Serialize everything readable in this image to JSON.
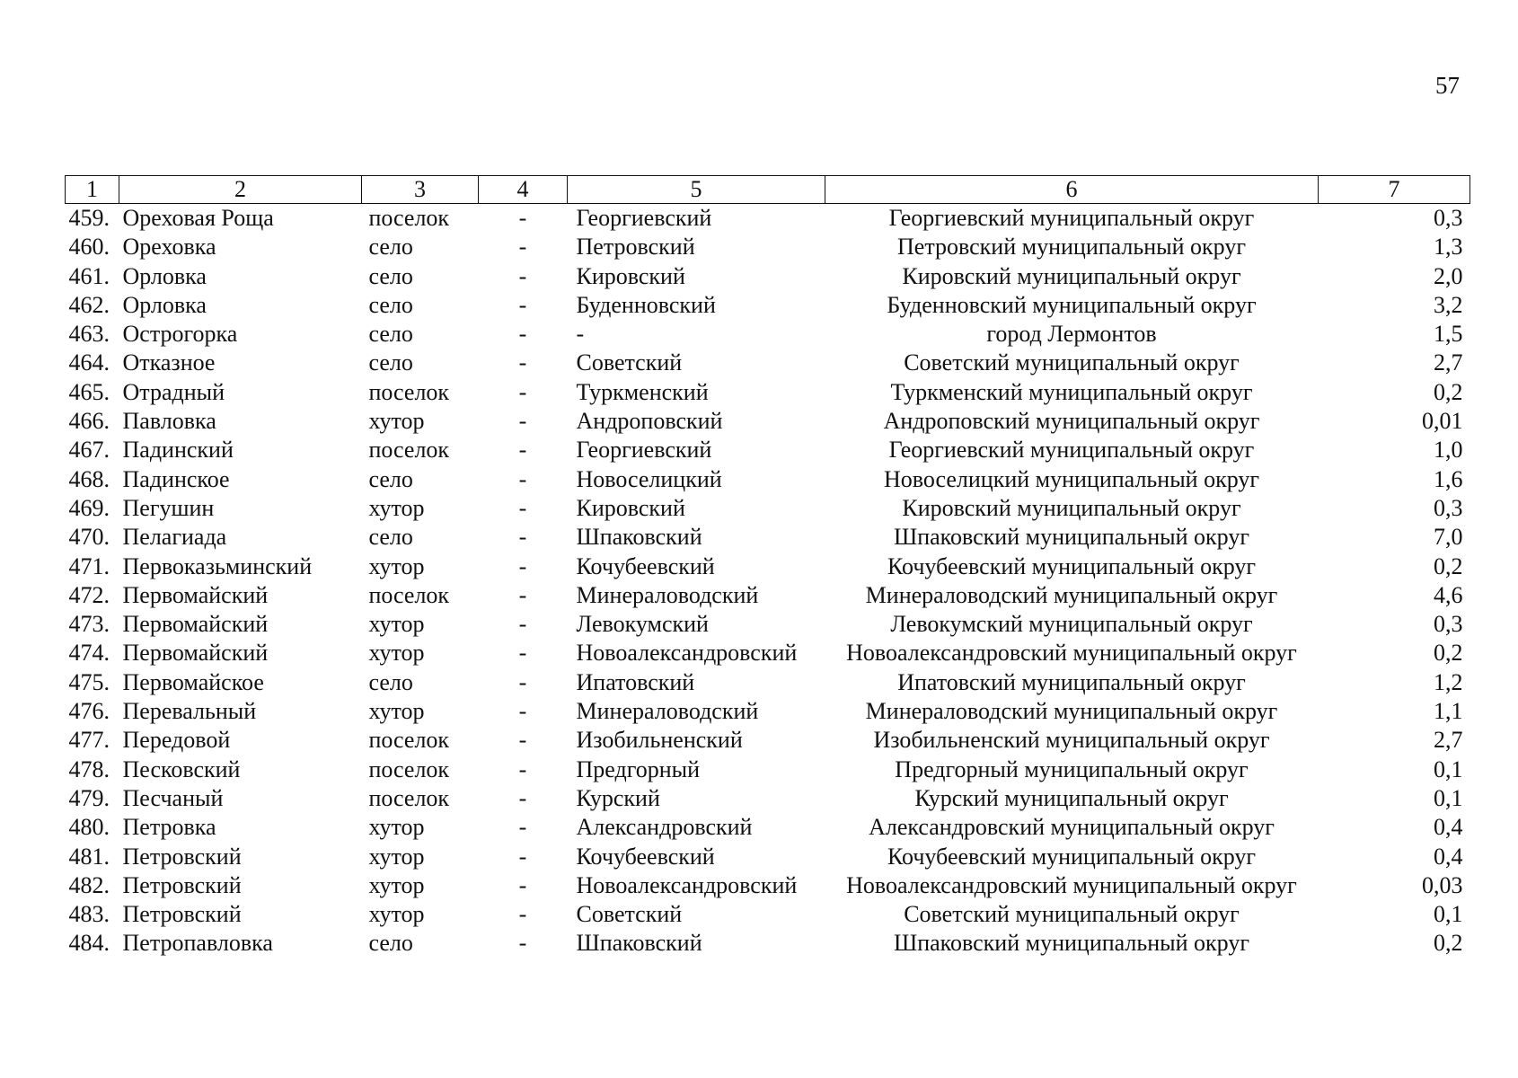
{
  "page_number": "57",
  "table": {
    "headers": [
      "1",
      "2",
      "3",
      "4",
      "5",
      "6",
      "7"
    ],
    "rows": [
      {
        "num": "459.",
        "name": "Ореховая Роща",
        "type": "поселок",
        "col4": "-",
        "district": "Георгиевский",
        "okrug": "Георгиевский муниципальный округ",
        "value": "0,3"
      },
      {
        "num": "460.",
        "name": "Ореховка",
        "type": "село",
        "col4": "-",
        "district": "Петровский",
        "okrug": "Петровский муниципальный округ",
        "value": "1,3"
      },
      {
        "num": "461.",
        "name": "Орловка",
        "type": "село",
        "col4": "-",
        "district": "Кировский",
        "okrug": "Кировский муниципальный округ",
        "value": "2,0"
      },
      {
        "num": "462.",
        "name": "Орловка",
        "type": "село",
        "col4": "-",
        "district": "Буденновский",
        "okrug": "Буденновский муниципальный округ",
        "value": "3,2"
      },
      {
        "num": "463.",
        "name": "Острогорка",
        "type": "село",
        "col4": "-",
        "district": "-",
        "okrug": "город Лермонтов",
        "value": "1,5"
      },
      {
        "num": "464.",
        "name": "Отказное",
        "type": "село",
        "col4": "-",
        "district": "Советский",
        "okrug": "Советский муниципальный округ",
        "value": "2,7"
      },
      {
        "num": "465.",
        "name": "Отрадный",
        "type": "поселок",
        "col4": "-",
        "district": "Туркменский",
        "okrug": "Туркменский муниципальный округ",
        "value": "0,2"
      },
      {
        "num": "466.",
        "name": "Павловка",
        "type": "хутор",
        "col4": "-",
        "district": "Андроповский",
        "okrug": "Андроповский муниципальный округ",
        "value": "0,01"
      },
      {
        "num": "467.",
        "name": "Падинский",
        "type": "поселок",
        "col4": "-",
        "district": "Георгиевский",
        "okrug": "Георгиевский муниципальный округ",
        "value": "1,0"
      },
      {
        "num": "468.",
        "name": "Падинское",
        "type": "село",
        "col4": "-",
        "district": "Новоселицкий",
        "okrug": "Новоселицкий муниципальный округ",
        "value": "1,6"
      },
      {
        "num": "469.",
        "name": "Пегушин",
        "type": "хутор",
        "col4": "-",
        "district": "Кировский",
        "okrug": "Кировский муниципальный округ",
        "value": "0,3"
      },
      {
        "num": "470.",
        "name": "Пелагиада",
        "type": "село",
        "col4": "-",
        "district": "Шпаковский",
        "okrug": "Шпаковский муниципальный округ",
        "value": "7,0"
      },
      {
        "num": "471.",
        "name": "Первоказьминский",
        "type": "хутор",
        "col4": "-",
        "district": "Кочубеевский",
        "okrug": "Кочубеевский муниципальный округ",
        "value": "0,2"
      },
      {
        "num": "472.",
        "name": "Первомайский",
        "type": "поселок",
        "col4": "-",
        "district": "Минераловодский",
        "okrug": "Минераловодский муниципальный округ",
        "value": "4,6"
      },
      {
        "num": "473.",
        "name": "Первомайский",
        "type": "хутор",
        "col4": "-",
        "district": "Левокумский",
        "okrug": "Левокумский муниципальный округ",
        "value": "0,3"
      },
      {
        "num": "474.",
        "name": "Первомайский",
        "type": "хутор",
        "col4": "-",
        "district": "Новоалександровский",
        "okrug": "Новоалександровский муниципальный округ",
        "value": "0,2"
      },
      {
        "num": "475.",
        "name": "Первомайское",
        "type": "село",
        "col4": "-",
        "district": "Ипатовский",
        "okrug": "Ипатовский муниципальный округ",
        "value": "1,2"
      },
      {
        "num": "476.",
        "name": "Перевальный",
        "type": "хутор",
        "col4": "-",
        "district": "Минераловодский",
        "okrug": "Минераловодский муниципальный округ",
        "value": "1,1"
      },
      {
        "num": "477.",
        "name": "Передовой",
        "type": "поселок",
        "col4": "-",
        "district": "Изобильненский",
        "okrug": "Изобильненский муниципальный округ",
        "value": "2,7"
      },
      {
        "num": "478.",
        "name": "Песковский",
        "type": "поселок",
        "col4": "-",
        "district": "Предгорный",
        "okrug": "Предгорный муниципальный округ",
        "value": "0,1"
      },
      {
        "num": "479.",
        "name": "Песчаный",
        "type": "поселок",
        "col4": "-",
        "district": "Курский",
        "okrug": "Курский муниципальный округ",
        "value": "0,1"
      },
      {
        "num": "480.",
        "name": "Петровка",
        "type": "хутор",
        "col4": "-",
        "district": "Александровский",
        "okrug": "Александровский муниципальный округ",
        "value": "0,4"
      },
      {
        "num": "481.",
        "name": "Петровский",
        "type": "хутор",
        "col4": "-",
        "district": "Кочубеевский",
        "okrug": "Кочубеевский муниципальный округ",
        "value": "0,4"
      },
      {
        "num": "482.",
        "name": "Петровский",
        "type": "хутор",
        "col4": "-",
        "district": "Новоалександровский",
        "okrug": "Новоалександровский муниципальный округ",
        "value": "0,03"
      },
      {
        "num": "483.",
        "name": "Петровский",
        "type": "хутор",
        "col4": "-",
        "district": "Советский",
        "okrug": "Советский муниципальный округ",
        "value": "0,1"
      },
      {
        "num": "484.",
        "name": "Петропавловка",
        "type": "село",
        "col4": "-",
        "district": "Шпаковский",
        "okrug": "Шпаковский муниципальный округ",
        "value": "0,2"
      }
    ]
  }
}
